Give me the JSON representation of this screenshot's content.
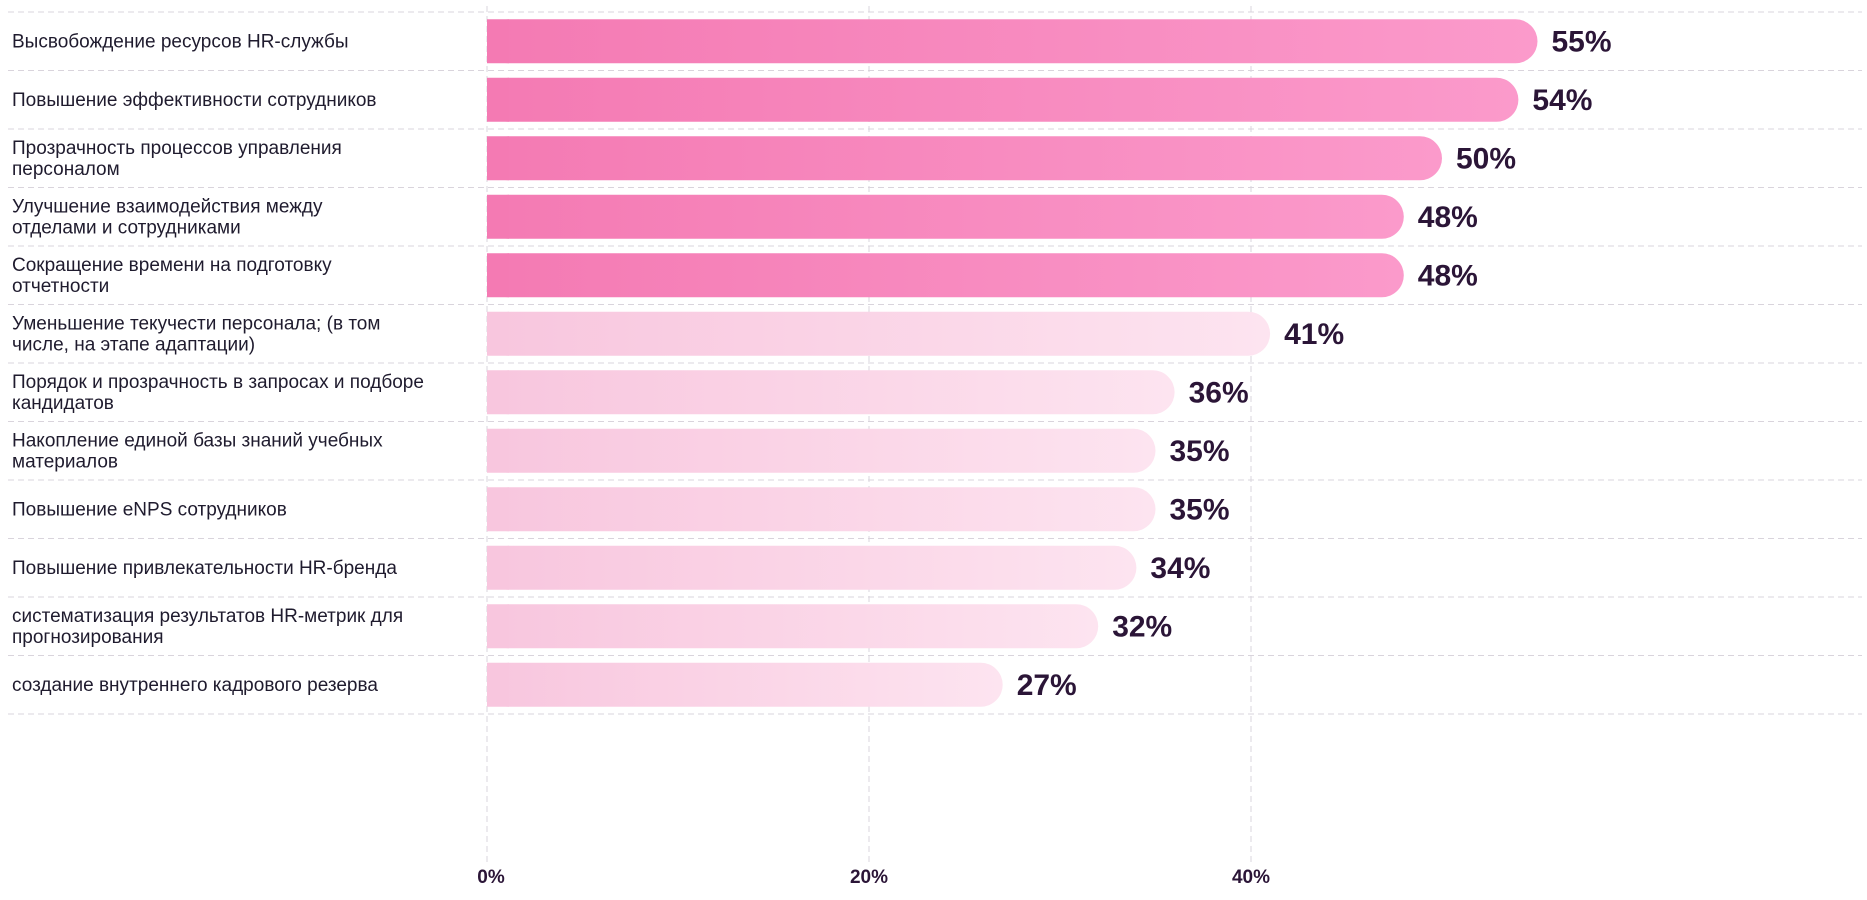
{
  "chart_data": {
    "type": "bar",
    "orientation": "horizontal",
    "title": "",
    "xlabel": "",
    "ylabel": "",
    "xlim": [
      0,
      55
    ],
    "x_ticks": [
      0,
      20,
      40
    ],
    "x_tick_labels": [
      "0%",
      "20%",
      "40%"
    ],
    "grid": true,
    "legend": "none",
    "categories": [
      "Высвобождение ресурсов HR-службы",
      "Повышение эффективности сотрудников",
      "Прозрачность процессов управления\nперсоналом",
      "Улучшение взаимодействия между\nотделами и сотрудниками",
      "Сокращение времени на подготовку\nотчетности",
      "Уменьшение текучести персонала; (в том\nчисле, на этапе адаптации)",
      "Порядок и прозрачность в запросах и подборе\nкандидатов",
      "Накопление единой базы знаний учебных\nматериалов",
      "Повышение eNPS сотрудников",
      "Повышение привлекательности HR-бренда",
      "систематизация результатов HR-метрик для\nпрогнозирования",
      "создание внутреннего кадрового резерва"
    ],
    "values": [
      55,
      54,
      50,
      48,
      48,
      41,
      36,
      35,
      35,
      34,
      32,
      27
    ],
    "value_labels": [
      "55%",
      "54%",
      "50%",
      "48%",
      "48%",
      "41%",
      "36%",
      "35%",
      "35%",
      "34%",
      "32%",
      "27%"
    ],
    "highlight_count": 5,
    "colors": {
      "highlight_start": "#f47ab3",
      "highlight_end": "#fb9acb",
      "normal_start": "#f8c6de",
      "normal_end": "#fde4f0",
      "grid": "#d9d4dc",
      "text": "#1f1b2e",
      "value_text": "#2b1537"
    }
  }
}
